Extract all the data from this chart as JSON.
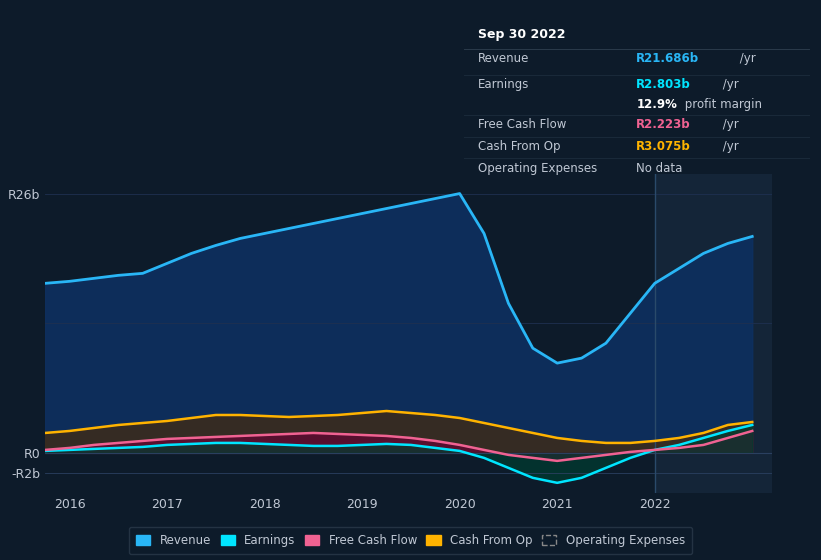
{
  "bg_color": "#0d1b2a",
  "plot_bg_color": "#0d1b2a",
  "text_color": "#c0c8d4",
  "ylim": [
    -4,
    28
  ],
  "years": [
    2015.75,
    2016.0,
    2016.25,
    2016.5,
    2016.75,
    2017.0,
    2017.25,
    2017.5,
    2017.75,
    2018.0,
    2018.25,
    2018.5,
    2018.75,
    2019.0,
    2019.25,
    2019.5,
    2019.75,
    2020.0,
    2020.25,
    2020.5,
    2020.75,
    2021.0,
    2021.25,
    2021.5,
    2021.75,
    2022.0,
    2022.25,
    2022.5,
    2022.75,
    2023.0
  ],
  "revenue": [
    17.0,
    17.2,
    17.5,
    17.8,
    18.0,
    19.0,
    20.0,
    20.8,
    21.5,
    22.0,
    22.5,
    23.0,
    23.5,
    24.0,
    24.5,
    25.0,
    25.5,
    26.0,
    22.0,
    15.0,
    10.5,
    9.0,
    9.5,
    11.0,
    14.0,
    17.0,
    18.5,
    20.0,
    21.0,
    21.7
  ],
  "earnings": [
    0.2,
    0.3,
    0.4,
    0.5,
    0.6,
    0.8,
    0.9,
    1.0,
    1.0,
    0.9,
    0.8,
    0.7,
    0.7,
    0.8,
    0.9,
    0.8,
    0.5,
    0.2,
    -0.5,
    -1.5,
    -2.5,
    -3.0,
    -2.5,
    -1.5,
    -0.5,
    0.3,
    0.8,
    1.5,
    2.2,
    2.8
  ],
  "free_cash_flow": [
    0.3,
    0.5,
    0.8,
    1.0,
    1.2,
    1.4,
    1.5,
    1.6,
    1.7,
    1.8,
    1.9,
    2.0,
    1.9,
    1.8,
    1.7,
    1.5,
    1.2,
    0.8,
    0.3,
    -0.2,
    -0.5,
    -0.8,
    -0.5,
    -0.2,
    0.1,
    0.3,
    0.5,
    0.8,
    1.5,
    2.2
  ],
  "cash_from_op": [
    2.0,
    2.2,
    2.5,
    2.8,
    3.0,
    3.2,
    3.5,
    3.8,
    3.8,
    3.7,
    3.6,
    3.7,
    3.8,
    4.0,
    4.2,
    4.0,
    3.8,
    3.5,
    3.0,
    2.5,
    2.0,
    1.5,
    1.2,
    1.0,
    1.0,
    1.2,
    1.5,
    2.0,
    2.8,
    3.1
  ],
  "revenue_color": "#29b6f6",
  "earnings_color": "#00e5ff",
  "fcf_color": "#f06292",
  "cfop_color": "#ffb300",
  "divider_x": 2022.0,
  "xlim": [
    2015.75,
    2023.2
  ],
  "xtick_years": [
    2016,
    2017,
    2018,
    2019,
    2020,
    2021,
    2022
  ],
  "tooltip_title": "Sep 30 2022",
  "tooltip_revenue_label": "Revenue",
  "tooltip_revenue_value": "R21.686b",
  "tooltip_earnings_label": "Earnings",
  "tooltip_earnings_value": "R2.803b",
  "tooltip_margin_bold": "12.9%",
  "tooltip_margin_rest": " profit margin",
  "tooltip_fcf_label": "Free Cash Flow",
  "tooltip_fcf_value": "R2.223b",
  "tooltip_cfop_label": "Cash From Op",
  "tooltip_cfop_value": "R3.075b",
  "tooltip_opex_label": "Operating Expenses",
  "tooltip_opex_value": "No data",
  "legend_items": [
    "Revenue",
    "Earnings",
    "Free Cash Flow",
    "Cash From Op",
    "Operating Expenses"
  ],
  "legend_colors": [
    "#29b6f6",
    "#00e5ff",
    "#f06292",
    "#ffb300",
    "#888888"
  ],
  "legend_filled": [
    true,
    true,
    true,
    true,
    false
  ]
}
